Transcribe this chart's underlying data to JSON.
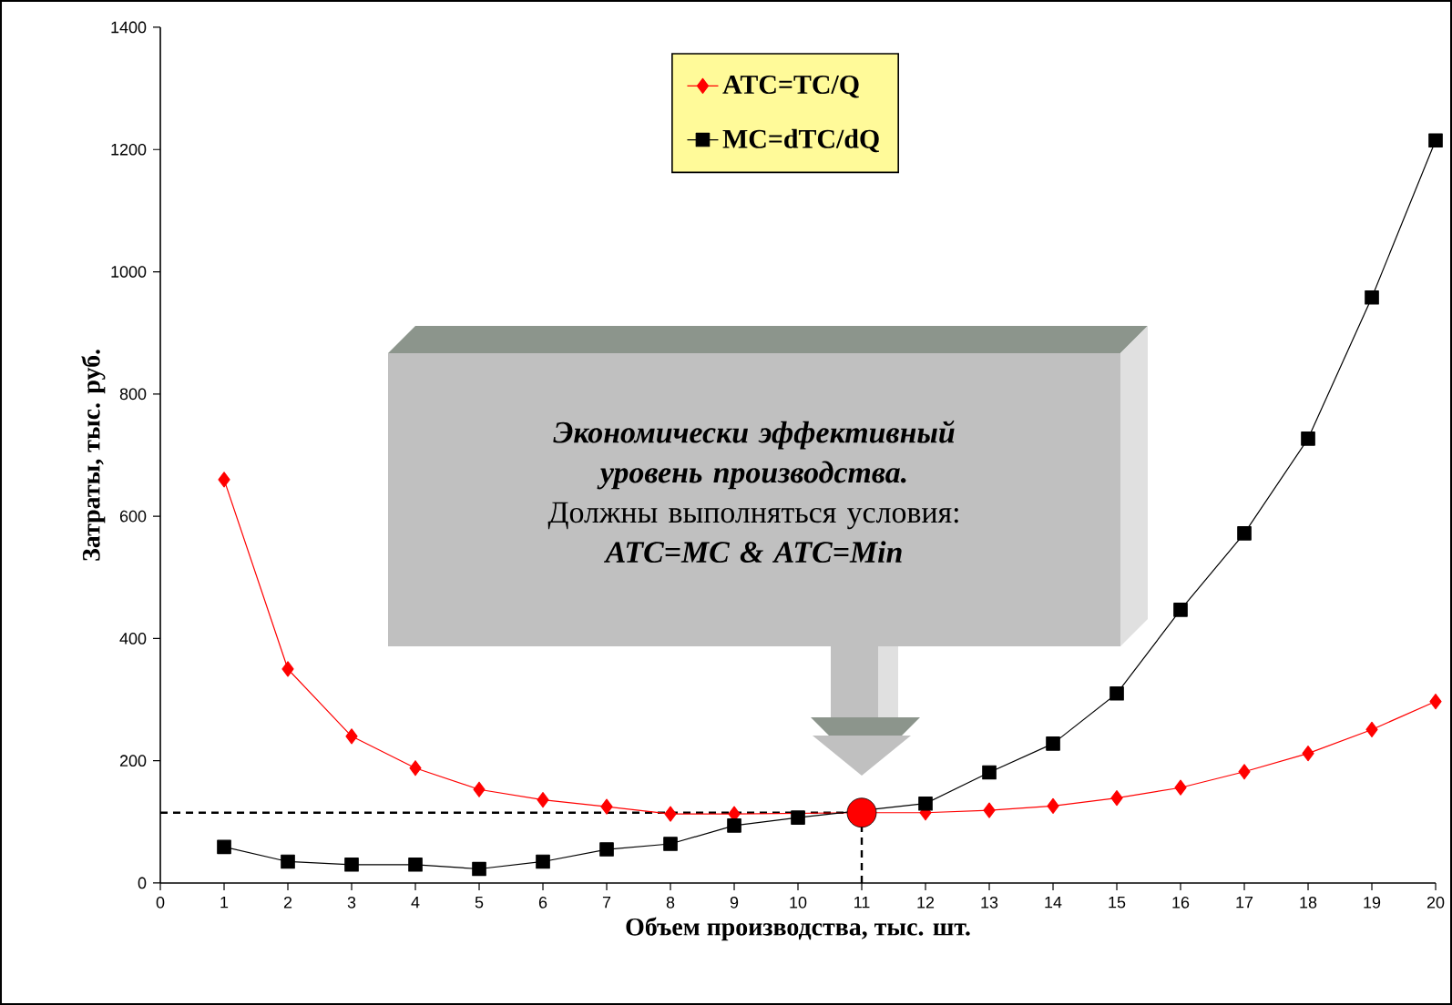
{
  "chart_data": {
    "type": "line",
    "xlabel": "Объем производства, тыс. шт.",
    "ylabel": "Затраты, тыс. руб.",
    "x": [
      1,
      2,
      3,
      4,
      5,
      6,
      7,
      8,
      9,
      10,
      11,
      12,
      13,
      14,
      15,
      16,
      17,
      18,
      19,
      20
    ],
    "series": [
      {
        "name": "ATC=TC/Q",
        "color": "#ff0000",
        "marker": "diamond",
        "values": [
          660,
          350,
          240,
          188,
          153,
          136,
          125,
          113,
          113,
          null,
          115,
          115,
          119,
          126,
          139,
          156,
          182,
          212,
          251,
          297
        ]
      },
      {
        "name": "MC=dTC/dQ",
        "color": "#000000",
        "marker": "square",
        "values": [
          59,
          35,
          30,
          30,
          23,
          35,
          55,
          64,
          94,
          107,
          null,
          130,
          181,
          228,
          310,
          447,
          572,
          727,
          958,
          1215
        ]
      },
      {
        "type": "scatter",
        "color": "#ff0000",
        "marker": "circle",
        "x": [
          11
        ],
        "values": [
          115
        ]
      }
    ],
    "xlim": [
      0,
      20
    ],
    "xticks": [
      0,
      1,
      2,
      3,
      4,
      5,
      6,
      7,
      8,
      9,
      10,
      11,
      12,
      13,
      14,
      15,
      16,
      17,
      18,
      19,
      20
    ],
    "ylim": [
      0,
      1400
    ],
    "yticks": [
      0,
      200,
      400,
      600,
      800,
      1000,
      1200,
      1400
    ],
    "ref_lines": [
      {
        "axis": "y",
        "value": 115,
        "color": "#000000",
        "line_style": "dashed"
      },
      {
        "axis": "x",
        "value": 11,
        "color": "#000000",
        "line_style": "dashed"
      }
    ],
    "annotations": [
      "Экономически эффективный уровень производства.",
      "Должны выполняться условия:",
      "ATC=MC & ATC=Min"
    ],
    "legend": "top",
    "grid": false,
    "line_style": "solid"
  }
}
